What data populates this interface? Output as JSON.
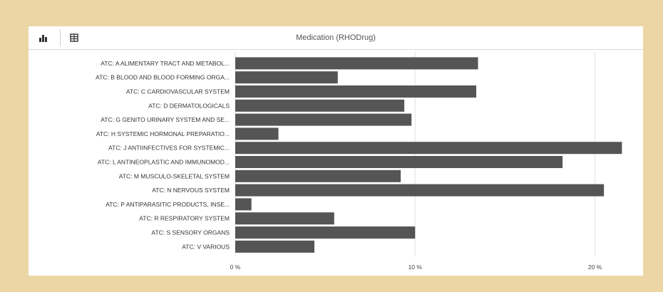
{
  "toolbar": {
    "chart_icon": "bar-chart-icon",
    "table_icon": "table-icon"
  },
  "chart_data": {
    "type": "bar",
    "orientation": "horizontal",
    "title": "Medication (RHODrug)",
    "categories": [
      "ATC: A ALIMENTARY TRACT AND METABOL...",
      "ATC: B BLOOD AND BLOOD FORMING ORGA...",
      "ATC: C CARDIOVASCULAR SYSTEM",
      "ATC: D DERMATOLOGICALS",
      "ATC: G GENITO URINARY SYSTEM AND SE...",
      "ATC: H SYSTEMIC HORMONAL PREPARATIO...",
      "ATC: J ANTIINFECTIVES FOR SYSTEMIC...",
      "ATC: L ANTINEOPLASTIC AND IMMUNOMOD...",
      "ATC: M MUSCULO-SKELETAL SYSTEM",
      "ATC: N NERVOUS SYSTEM",
      "ATC: P ANTIPARASITIC PRODUCTS, INSE...",
      "ATC: R RESPIRATORY SYSTEM",
      "ATC: S SENSORY ORGANS",
      "ATC: V VARIOUS"
    ],
    "values": [
      13.5,
      5.7,
      13.4,
      9.4,
      9.8,
      2.4,
      21.5,
      18.2,
      9.2,
      20.5,
      0.9,
      5.5,
      10.0,
      4.4
    ],
    "xlim": [
      0,
      22
    ],
    "xticks": [
      0,
      10,
      20
    ],
    "xtick_labels": [
      "0 %",
      "10 %",
      "20 %"
    ],
    "bar_color": "#555555",
    "grid": true,
    "xlabel": "",
    "ylabel": ""
  }
}
